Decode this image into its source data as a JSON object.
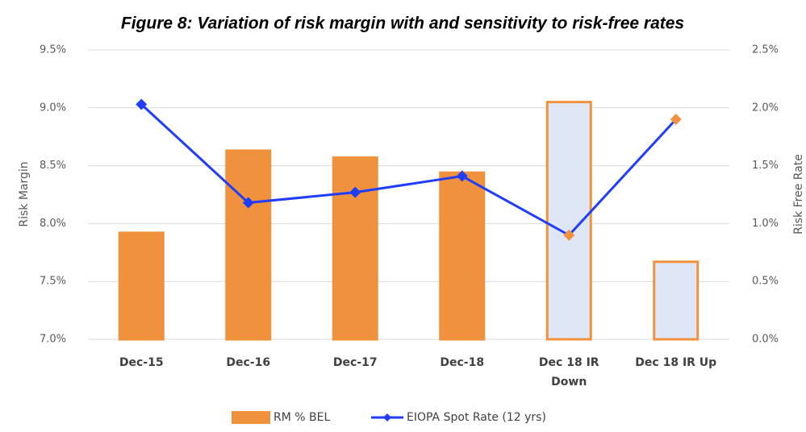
{
  "chart_data": {
    "type": "bar_line",
    "title": "Figure 8: Variation of risk margin with and sensitivity to risk-free rates",
    "y_label": "Risk Margin",
    "y2_label": "Risk Free Rate",
    "categories": [
      "Dec-15",
      "Dec-16",
      "Dec-17",
      "Dec-18",
      "Dec 18  IR Down",
      "Dec 18  IR Up"
    ],
    "ylim": [
      7.0,
      9.5
    ],
    "yticks": [
      {
        "value": 7.0,
        "label": "7.0%"
      },
      {
        "value": 7.5,
        "label": "7.5%"
      },
      {
        "value": 8.0,
        "label": "8.0%"
      },
      {
        "value": 8.5,
        "label": "8.5%"
      },
      {
        "value": 9.0,
        "label": "9.0%"
      },
      {
        "value": 9.5,
        "label": "9.5%"
      }
    ],
    "y2lim": [
      0.0,
      2.5
    ],
    "y2ticks": [
      {
        "value": 0.0,
        "label": "0.0%"
      },
      {
        "value": 0.5,
        "label": "0.5%"
      },
      {
        "value": 1.0,
        "label": "1.0%"
      },
      {
        "value": 1.5,
        "label": "1.5%"
      },
      {
        "value": 2.0,
        "label": "2.0%"
      },
      {
        "value": 2.5,
        "label": "2.5%"
      }
    ],
    "grid": true,
    "series": [
      {
        "name": "RM % BEL",
        "type": "bar",
        "color": "#f0923d",
        "fills": [
          "#f0923d",
          "#f0923d",
          "#f0923d",
          "#f0923d",
          "#dfe6f5",
          "#dfe6f5"
        ],
        "values": [
          7.92,
          8.63,
          8.57,
          8.44,
          9.05,
          7.67
        ]
      },
      {
        "name": "EIOPA Spot Rate (12 yrs)",
        "type": "line",
        "axis": "y2",
        "color": "#1f3dfa",
        "marker_colors": [
          "#1f3dfa",
          "#1f3dfa",
          "#1f3dfa",
          "#1f3dfa",
          "#f0923d",
          "#f0923d"
        ],
        "values": [
          2.03,
          1.18,
          1.27,
          1.41,
          0.9,
          1.9
        ]
      }
    ]
  }
}
